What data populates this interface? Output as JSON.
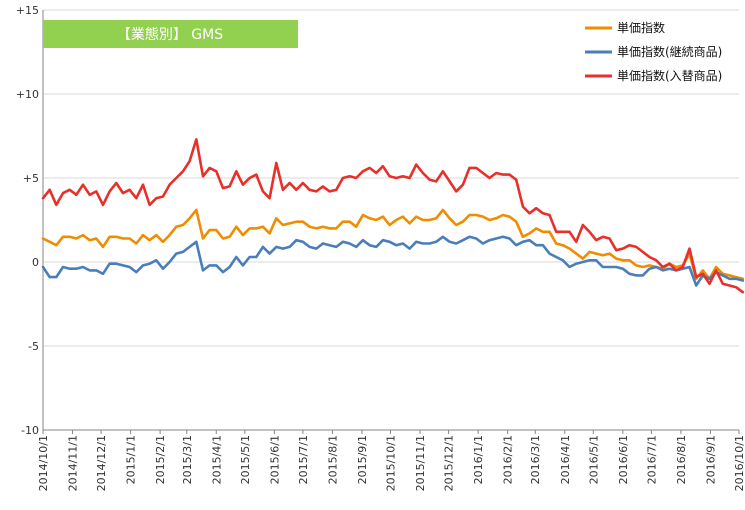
{
  "chart_data": {
    "type": "line",
    "title": "【業態別】 GMS",
    "xlabel": "",
    "ylabel": "",
    "ylim": [
      -10,
      15
    ],
    "yticks": [
      -10,
      -5,
      0,
      5,
      10,
      15
    ],
    "ytick_labels": [
      "-10",
      "-5",
      "0",
      "+5",
      "+10",
      "+15"
    ],
    "grid": true,
    "legend_position": "top-right",
    "x_start": "2014/10/1",
    "x_end": "2016/10/1",
    "x_tick_labels": [
      "2014/10/1",
      "2014/11/1",
      "2014/12/1",
      "2015/1/1",
      "2015/2/1",
      "2015/3/1",
      "2015/4/1",
      "2015/5/1",
      "2015/6/1",
      "2015/7/1",
      "2015/8/1",
      "2015/9/1",
      "2015/10/1",
      "2015/11/1",
      "2015/12/1",
      "2016/1/1",
      "2016/2/1",
      "2016/3/1",
      "2016/4/1",
      "2016/5/1",
      "2016/6/1",
      "2016/7/1",
      "2016/8/1",
      "2016/9/1",
      "2016/10/1"
    ],
    "x_tick_dates": [
      "2014-10-01",
      "2014-11-01",
      "2014-12-01",
      "2015-01-01",
      "2015-02-01",
      "2015-03-01",
      "2015-04-01",
      "2015-05-01",
      "2015-06-01",
      "2015-07-01",
      "2015-08-01",
      "2015-09-01",
      "2015-10-01",
      "2015-11-01",
      "2015-12-01",
      "2016-01-01",
      "2016-02-01",
      "2016-03-01",
      "2016-04-01",
      "2016-05-01",
      "2016-06-01",
      "2016-07-01",
      "2016-08-01",
      "2016-09-01",
      "2016-10-01"
    ],
    "x_dates": [
      "2014-10-01",
      "2014-10-08",
      "2014-10-15",
      "2014-10-22",
      "2014-10-29",
      "2014-11-05",
      "2014-11-12",
      "2014-11-19",
      "2014-11-26",
      "2014-12-03",
      "2014-12-10",
      "2014-12-17",
      "2014-12-24",
      "2014-12-31",
      "2015-01-07",
      "2015-01-14",
      "2015-01-21",
      "2015-01-28",
      "2015-02-04",
      "2015-02-11",
      "2015-02-18",
      "2015-02-25",
      "2015-03-04",
      "2015-03-11",
      "2015-03-18",
      "2015-03-25",
      "2015-04-01",
      "2015-04-08",
      "2015-04-15",
      "2015-04-22",
      "2015-04-29",
      "2015-05-06",
      "2015-05-13",
      "2015-05-20",
      "2015-05-27",
      "2015-06-03",
      "2015-06-10",
      "2015-06-17",
      "2015-06-24",
      "2015-07-01",
      "2015-07-08",
      "2015-07-15",
      "2015-07-22",
      "2015-07-29",
      "2015-08-05",
      "2015-08-12",
      "2015-08-19",
      "2015-08-26",
      "2015-09-02",
      "2015-09-09",
      "2015-09-16",
      "2015-09-23",
      "2015-09-30",
      "2015-10-07",
      "2015-10-14",
      "2015-10-21",
      "2015-10-28",
      "2015-11-04",
      "2015-11-11",
      "2015-11-18",
      "2015-11-25",
      "2015-12-02",
      "2015-12-09",
      "2015-12-16",
      "2015-12-23",
      "2015-12-30",
      "2016-01-06",
      "2016-01-13",
      "2016-01-20",
      "2016-01-27",
      "2016-02-03",
      "2016-02-10",
      "2016-02-17",
      "2016-02-24",
      "2016-03-02",
      "2016-03-09",
      "2016-03-16",
      "2016-03-23",
      "2016-03-30",
      "2016-04-06",
      "2016-04-13",
      "2016-04-20",
      "2016-04-27",
      "2016-05-04",
      "2016-05-11",
      "2016-05-18",
      "2016-05-25",
      "2016-06-01",
      "2016-06-08",
      "2016-06-15",
      "2016-06-22",
      "2016-06-29",
      "2016-07-06",
      "2016-07-13",
      "2016-07-20",
      "2016-07-27",
      "2016-08-03",
      "2016-08-10",
      "2016-08-17",
      "2016-08-24",
      "2016-08-31",
      "2016-09-07",
      "2016-09-14",
      "2016-09-21",
      "2016-09-28",
      "2016-10-05"
    ],
    "series": [
      {
        "name": "単価指数",
        "color": "#F08C00",
        "values": [
          1.4,
          1.2,
          1.0,
          1.5,
          1.5,
          1.4,
          1.6,
          1.3,
          1.4,
          0.9,
          1.5,
          1.5,
          1.4,
          1.4,
          1.1,
          1.6,
          1.3,
          1.6,
          1.2,
          1.6,
          2.1,
          2.2,
          2.6,
          3.1,
          1.4,
          1.9,
          1.9,
          1.4,
          1.5,
          2.1,
          1.6,
          2.0,
          2.0,
          2.1,
          1.7,
          2.6,
          2.2,
          2.3,
          2.4,
          2.4,
          2.1,
          2.0,
          2.1,
          2.0,
          2.0,
          2.4,
          2.4,
          2.1,
          2.8,
          2.6,
          2.5,
          2.7,
          2.2,
          2.5,
          2.7,
          2.3,
          2.7,
          2.5,
          2.5,
          2.6,
          3.1,
          2.6,
          2.2,
          2.4,
          2.8,
          2.8,
          2.7,
          2.5,
          2.6,
          2.8,
          2.7,
          2.4,
          1.5,
          1.7,
          2.0,
          1.8,
          1.8,
          1.1,
          1.0,
          0.8,
          0.5,
          0.2,
          0.6,
          0.5,
          0.4,
          0.5,
          0.2,
          0.1,
          0.1,
          -0.2,
          -0.3,
          -0.2,
          -0.3,
          -0.4,
          -0.1,
          -0.3,
          -0.2,
          0.5,
          -1.0,
          -0.5,
          -1.0,
          -0.3,
          -0.7,
          -0.8,
          -0.9,
          -1.0
        ]
      },
      {
        "name": "単価指数(継続商品)",
        "color": "#4A7EBB",
        "values": [
          -0.3,
          -0.9,
          -0.9,
          -0.3,
          -0.4,
          -0.4,
          -0.3,
          -0.5,
          -0.5,
          -0.7,
          -0.1,
          -0.1,
          -0.2,
          -0.3,
          -0.6,
          -0.2,
          -0.1,
          0.1,
          -0.4,
          0.0,
          0.5,
          0.6,
          0.9,
          1.2,
          -0.5,
          -0.2,
          -0.2,
          -0.6,
          -0.3,
          0.3,
          -0.2,
          0.3,
          0.3,
          0.9,
          0.5,
          0.9,
          0.8,
          0.9,
          1.3,
          1.2,
          0.9,
          0.8,
          1.1,
          1.0,
          0.9,
          1.2,
          1.1,
          0.9,
          1.3,
          1.0,
          0.9,
          1.3,
          1.2,
          1.0,
          1.1,
          0.8,
          1.2,
          1.1,
          1.1,
          1.2,
          1.5,
          1.2,
          1.1,
          1.3,
          1.5,
          1.4,
          1.1,
          1.3,
          1.4,
          1.5,
          1.4,
          1.0,
          1.2,
          1.3,
          1.0,
          1.0,
          0.5,
          0.3,
          0.1,
          -0.3,
          -0.1,
          0.0,
          0.1,
          0.1,
          -0.3,
          -0.3,
          -0.3,
          -0.4,
          -0.7,
          -0.8,
          -0.8,
          -0.4,
          -0.3,
          -0.5,
          -0.4,
          -0.5,
          -0.4,
          -0.3,
          -1.4,
          -0.8,
          -1.0,
          -0.6,
          -0.8,
          -1.0,
          -1.0,
          -1.1
        ]
      },
      {
        "name": "単価指数(入替商品)",
        "color": "#E8302A",
        "values": [
          3.8,
          4.3,
          3.4,
          4.1,
          4.3,
          4.0,
          4.6,
          4.0,
          4.2,
          3.4,
          4.2,
          4.7,
          4.1,
          4.3,
          3.8,
          4.6,
          3.4,
          3.8,
          3.9,
          4.6,
          5.0,
          5.4,
          6.0,
          7.3,
          5.1,
          5.6,
          5.4,
          4.4,
          4.5,
          5.4,
          4.6,
          5.0,
          5.2,
          4.2,
          3.8,
          5.9,
          4.3,
          4.7,
          4.3,
          4.7,
          4.3,
          4.2,
          4.5,
          4.2,
          4.3,
          5.0,
          5.1,
          5.0,
          5.4,
          5.6,
          5.3,
          5.7,
          5.1,
          5.0,
          5.1,
          5.0,
          5.8,
          5.3,
          4.9,
          4.8,
          5.4,
          4.8,
          4.2,
          4.6,
          5.6,
          5.6,
          5.3,
          5.0,
          5.3,
          5.2,
          5.2,
          4.9,
          3.3,
          2.9,
          3.2,
          2.9,
          2.8,
          1.8,
          1.8,
          1.8,
          1.2,
          2.2,
          1.8,
          1.3,
          1.5,
          1.4,
          0.7,
          0.8,
          1.0,
          0.9,
          0.6,
          0.3,
          0.1,
          -0.3,
          -0.1,
          -0.5,
          -0.3,
          0.8,
          -0.9,
          -0.7,
          -1.3,
          -0.5,
          -1.3,
          -1.4,
          -1.5,
          -1.8
        ]
      }
    ]
  }
}
